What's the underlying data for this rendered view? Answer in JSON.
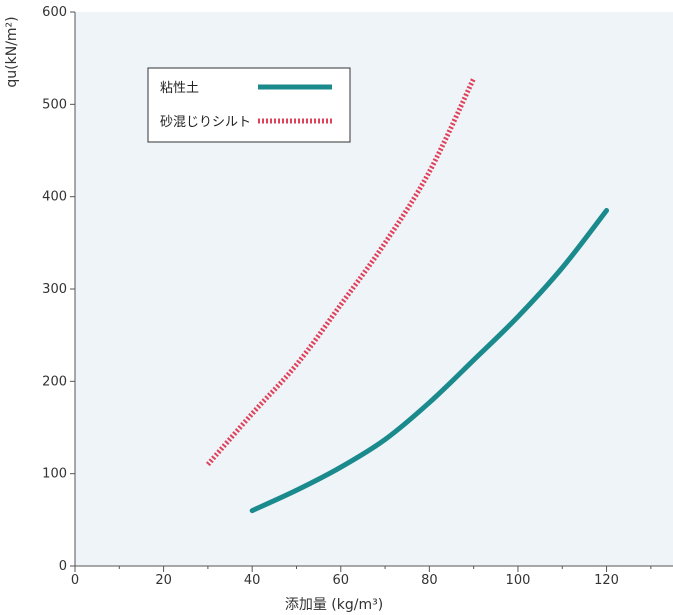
{
  "chart_data": {
    "type": "line",
    "xlabel": "添加量 (kg/m³)",
    "ylabel": "qu(kN/m²)",
    "xlim": [
      0,
      135
    ],
    "ylim": [
      0,
      600
    ],
    "x_ticks": [
      0,
      20,
      40,
      60,
      80,
      100,
      120
    ],
    "y_ticks": [
      0,
      100,
      200,
      300,
      400,
      500,
      600
    ],
    "grid": false,
    "legend_position": "top-left",
    "plot_background": "#eef4f8",
    "series": [
      {
        "name": "粘性土",
        "color": "#1a8a8c",
        "style": "solid",
        "x": [
          40,
          50,
          60,
          70,
          80,
          90,
          100,
          110,
          120
        ],
        "y": [
          60,
          82,
          107,
          137,
          177,
          223,
          270,
          323,
          385
        ]
      },
      {
        "name": "砂混じりシルト",
        "color": "#e0405a",
        "style": "dashed",
        "x": [
          30,
          40,
          50,
          60,
          70,
          80,
          90
        ],
        "y": [
          110,
          165,
          218,
          283,
          350,
          427,
          528
        ]
      }
    ]
  }
}
